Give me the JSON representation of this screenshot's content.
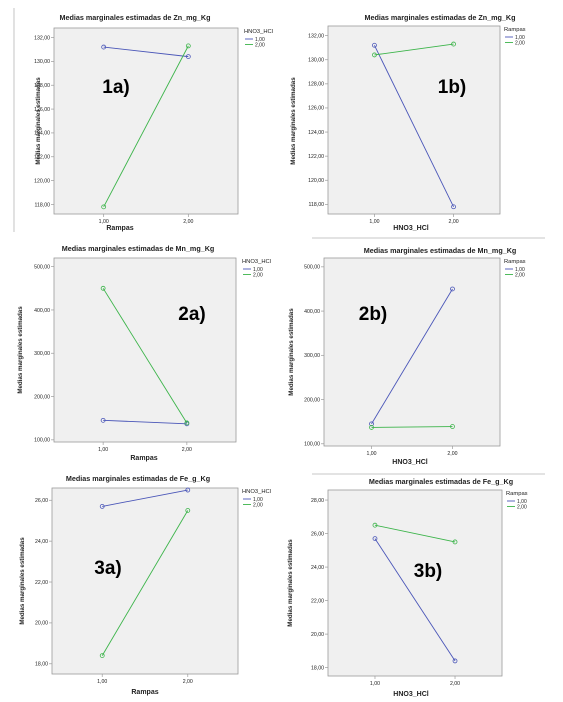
{
  "colors": {
    "series1": "#4a56b8",
    "series2": "#3cb44a",
    "plot_bg": "#f0f0f0",
    "frame": "#9a9a9a",
    "text": "#222222"
  },
  "chart_data": [
    {
      "id": "1a",
      "type": "line",
      "title": "Medias marginales estimadas de Zn_mg_Kg",
      "panel_label": "1a)",
      "xlabel": "Rampas",
      "ylabel": "Medias marginales estimadas",
      "legend_title": "HNO3_HCl",
      "legend_placement": "top-right",
      "categories": [
        "1,00",
        "2,00"
      ],
      "y_ticks": [
        "118,00",
        "120,00",
        "122,00",
        "124,00",
        "126,00",
        "128,00",
        "130,00",
        "132,00"
      ],
      "ylim": [
        117.2,
        132.8
      ],
      "series": [
        {
          "name": "1,00",
          "values": [
            131.2,
            130.4
          ]
        },
        {
          "name": "2,00",
          "values": [
            117.8,
            131.3
          ]
        }
      ]
    },
    {
      "id": "1b",
      "type": "line",
      "title": "Medias marginales estimadas de Zn_mg_Kg",
      "panel_label": "1b)",
      "xlabel": "HNO3_HCl",
      "ylabel": "Medias marginales estimadas",
      "legend_title": "Rampas",
      "legend_placement": "top-right",
      "categories": [
        "1,00",
        "2,00"
      ],
      "y_ticks": [
        "118,00",
        "120,00",
        "122,00",
        "124,00",
        "126,00",
        "128,00",
        "130,00",
        "132,00"
      ],
      "ylim": [
        117.2,
        132.8
      ],
      "series": [
        {
          "name": "1,00",
          "values": [
            131.2,
            117.8
          ]
        },
        {
          "name": "2,00",
          "values": [
            130.4,
            131.3
          ]
        }
      ]
    },
    {
      "id": "2a",
      "type": "line",
      "title": "Medias marginales estimadas de Mn_mg_Kg",
      "panel_label": "2a)",
      "xlabel": "Rampas",
      "ylabel": "Medias marginales estimadas",
      "legend_title": "HNO3_HCl",
      "legend_placement": "top-right",
      "categories": [
        "1,00",
        "2,00"
      ],
      "y_ticks": [
        "100,00",
        "200,00",
        "300,00",
        "400,00",
        "500,00"
      ],
      "ylim": [
        95,
        520
      ],
      "series": [
        {
          "name": "1,00",
          "values": [
            145,
            137
          ]
        },
        {
          "name": "2,00",
          "values": [
            450,
            139
          ]
        }
      ]
    },
    {
      "id": "2b",
      "type": "line",
      "title": "Medias marginales estimadas de Mn_mg_Kg",
      "panel_label": "2b)",
      "xlabel": "HNO3_HCl",
      "ylabel": "Medias marginales estimadas",
      "legend_title": "Rampas",
      "legend_placement": "top-right",
      "categories": [
        "1,00",
        "2,00"
      ],
      "y_ticks": [
        "100,00",
        "200,00",
        "300,00",
        "400,00",
        "500,00"
      ],
      "ylim": [
        95,
        520
      ],
      "series": [
        {
          "name": "1,00",
          "values": [
            145,
            450
          ]
        },
        {
          "name": "2,00",
          "values": [
            137,
            139
          ]
        }
      ]
    },
    {
      "id": "3a",
      "type": "line",
      "title": "Medias marginales estimadas de Fe_g_Kg",
      "panel_label": "3a)",
      "xlabel": "Rampas",
      "ylabel": "Medias marginales estimadas",
      "legend_title": "HNO3_HCl",
      "legend_placement": "top-right",
      "categories": [
        "1,00",
        "2,00"
      ],
      "y_ticks": [
        "18,00",
        "20,00",
        "22,00",
        "24,00",
        "26,00"
      ],
      "ylim": [
        17.5,
        26.6
      ],
      "series": [
        {
          "name": "1,00",
          "values": [
            25.7,
            26.5
          ]
        },
        {
          "name": "2,00",
          "values": [
            18.4,
            25.5
          ]
        }
      ]
    },
    {
      "id": "3b",
      "type": "line",
      "title": "Medias marginales estimadas de Fe_g_Kg",
      "panel_label": "3b)",
      "xlabel": "HNO3_HCl",
      "ylabel": "Medias marginales estimadas",
      "legend_title": "Rampas",
      "legend_placement": "top-right",
      "categories": [
        "1,00",
        "2,00"
      ],
      "y_ticks": [
        "18,00",
        "20,00",
        "22,00",
        "24,00",
        "26,00",
        "28,00"
      ],
      "ylim": [
        17.5,
        28.6
      ],
      "series": [
        {
          "name": "1,00",
          "values": [
            25.7,
            18.4
          ]
        },
        {
          "name": "2,00",
          "values": [
            26.5,
            25.5
          ]
        }
      ]
    }
  ]
}
